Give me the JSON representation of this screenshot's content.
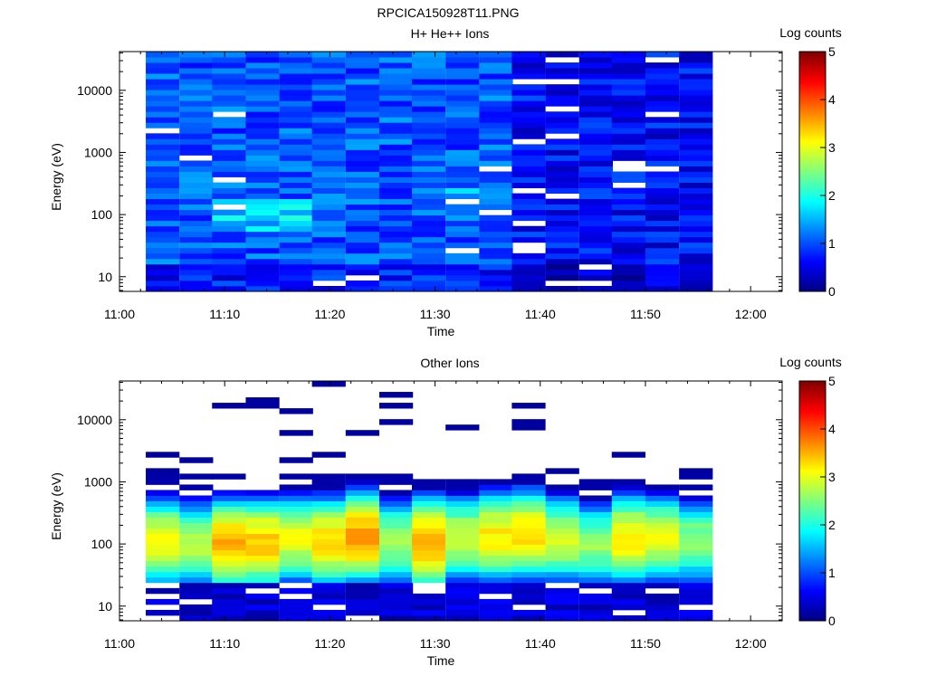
{
  "page_title": "RPCICA150928T11.PNG",
  "colormap": [
    "#00007f",
    "#0000ff",
    "#007fff",
    "#00ffff",
    "#7fff7f",
    "#ffff00",
    "#ff7f00",
    "#ff0000",
    "#7f0000"
  ],
  "chart_data": [
    {
      "type": "heatmap",
      "title": "H+ He++ Ions",
      "xlabel": "Time",
      "ylabel": "Energy (eV)",
      "x_ticks": [
        "11:00",
        "11:10",
        "11:20",
        "11:30",
        "11:40",
        "11:50",
        "12:00"
      ],
      "y_ticks": [
        "10",
        "100",
        "1000",
        "10000"
      ],
      "y_scale": "log",
      "y_range": [
        5.8,
        42000
      ],
      "x_range_minutes": [
        0,
        63
      ],
      "colorbar": {
        "label": "Log counts",
        "ticks": [
          "0",
          "1",
          "2",
          "3",
          "4",
          "5"
        ],
        "range": [
          0,
          5
        ]
      },
      "time_bins_minutes": [
        2.5,
        5.7,
        8.8,
        12.0,
        15.2,
        18.3,
        21.5,
        24.7,
        27.8,
        31.0,
        34.2,
        37.3,
        40.5,
        43.7,
        46.8,
        50.0,
        53.2
      ],
      "bin_width_minutes": 3.17,
      "energy_range_ev": [
        5.8,
        42000
      ],
      "pattern": "protons",
      "seed": 7
    },
    {
      "type": "heatmap",
      "title": "Other Ions",
      "xlabel": "Time",
      "ylabel": "Energy (eV)",
      "x_ticks": [
        "11:00",
        "11:10",
        "11:20",
        "11:30",
        "11:40",
        "11:50",
        "12:00"
      ],
      "y_ticks": [
        "10",
        "100",
        "1000",
        "10000"
      ],
      "y_scale": "log",
      "y_range": [
        5.8,
        42000
      ],
      "x_range_minutes": [
        0,
        63
      ],
      "colorbar": {
        "label": "Log counts",
        "ticks": [
          "0",
          "1",
          "2",
          "3",
          "4",
          "5"
        ],
        "range": [
          0,
          5
        ]
      },
      "time_bins_minutes": [
        2.5,
        5.7,
        8.8,
        12.0,
        15.2,
        18.3,
        21.5,
        24.7,
        27.8,
        31.0,
        34.2,
        37.3,
        40.5,
        43.7,
        46.8,
        50.0,
        53.2
      ],
      "bin_width_minutes": 3.17,
      "energy_range_ev": [
        5.8,
        42000
      ],
      "peak_energy_ev": [
        100,
        90,
        90,
        95,
        110,
        100,
        120,
        100,
        95,
        110,
        120,
        130,
        110,
        90,
        110,
        110,
        100
      ],
      "peak_log_counts": [
        3.1,
        2.8,
        3.5,
        3.4,
        3.0,
        3.3,
        3.6,
        2.7,
        3.6,
        2.9,
        3.2,
        3.3,
        2.9,
        2.6,
        3.2,
        3.0,
        2.6
      ],
      "pattern": "heavy",
      "seed": 11
    }
  ]
}
